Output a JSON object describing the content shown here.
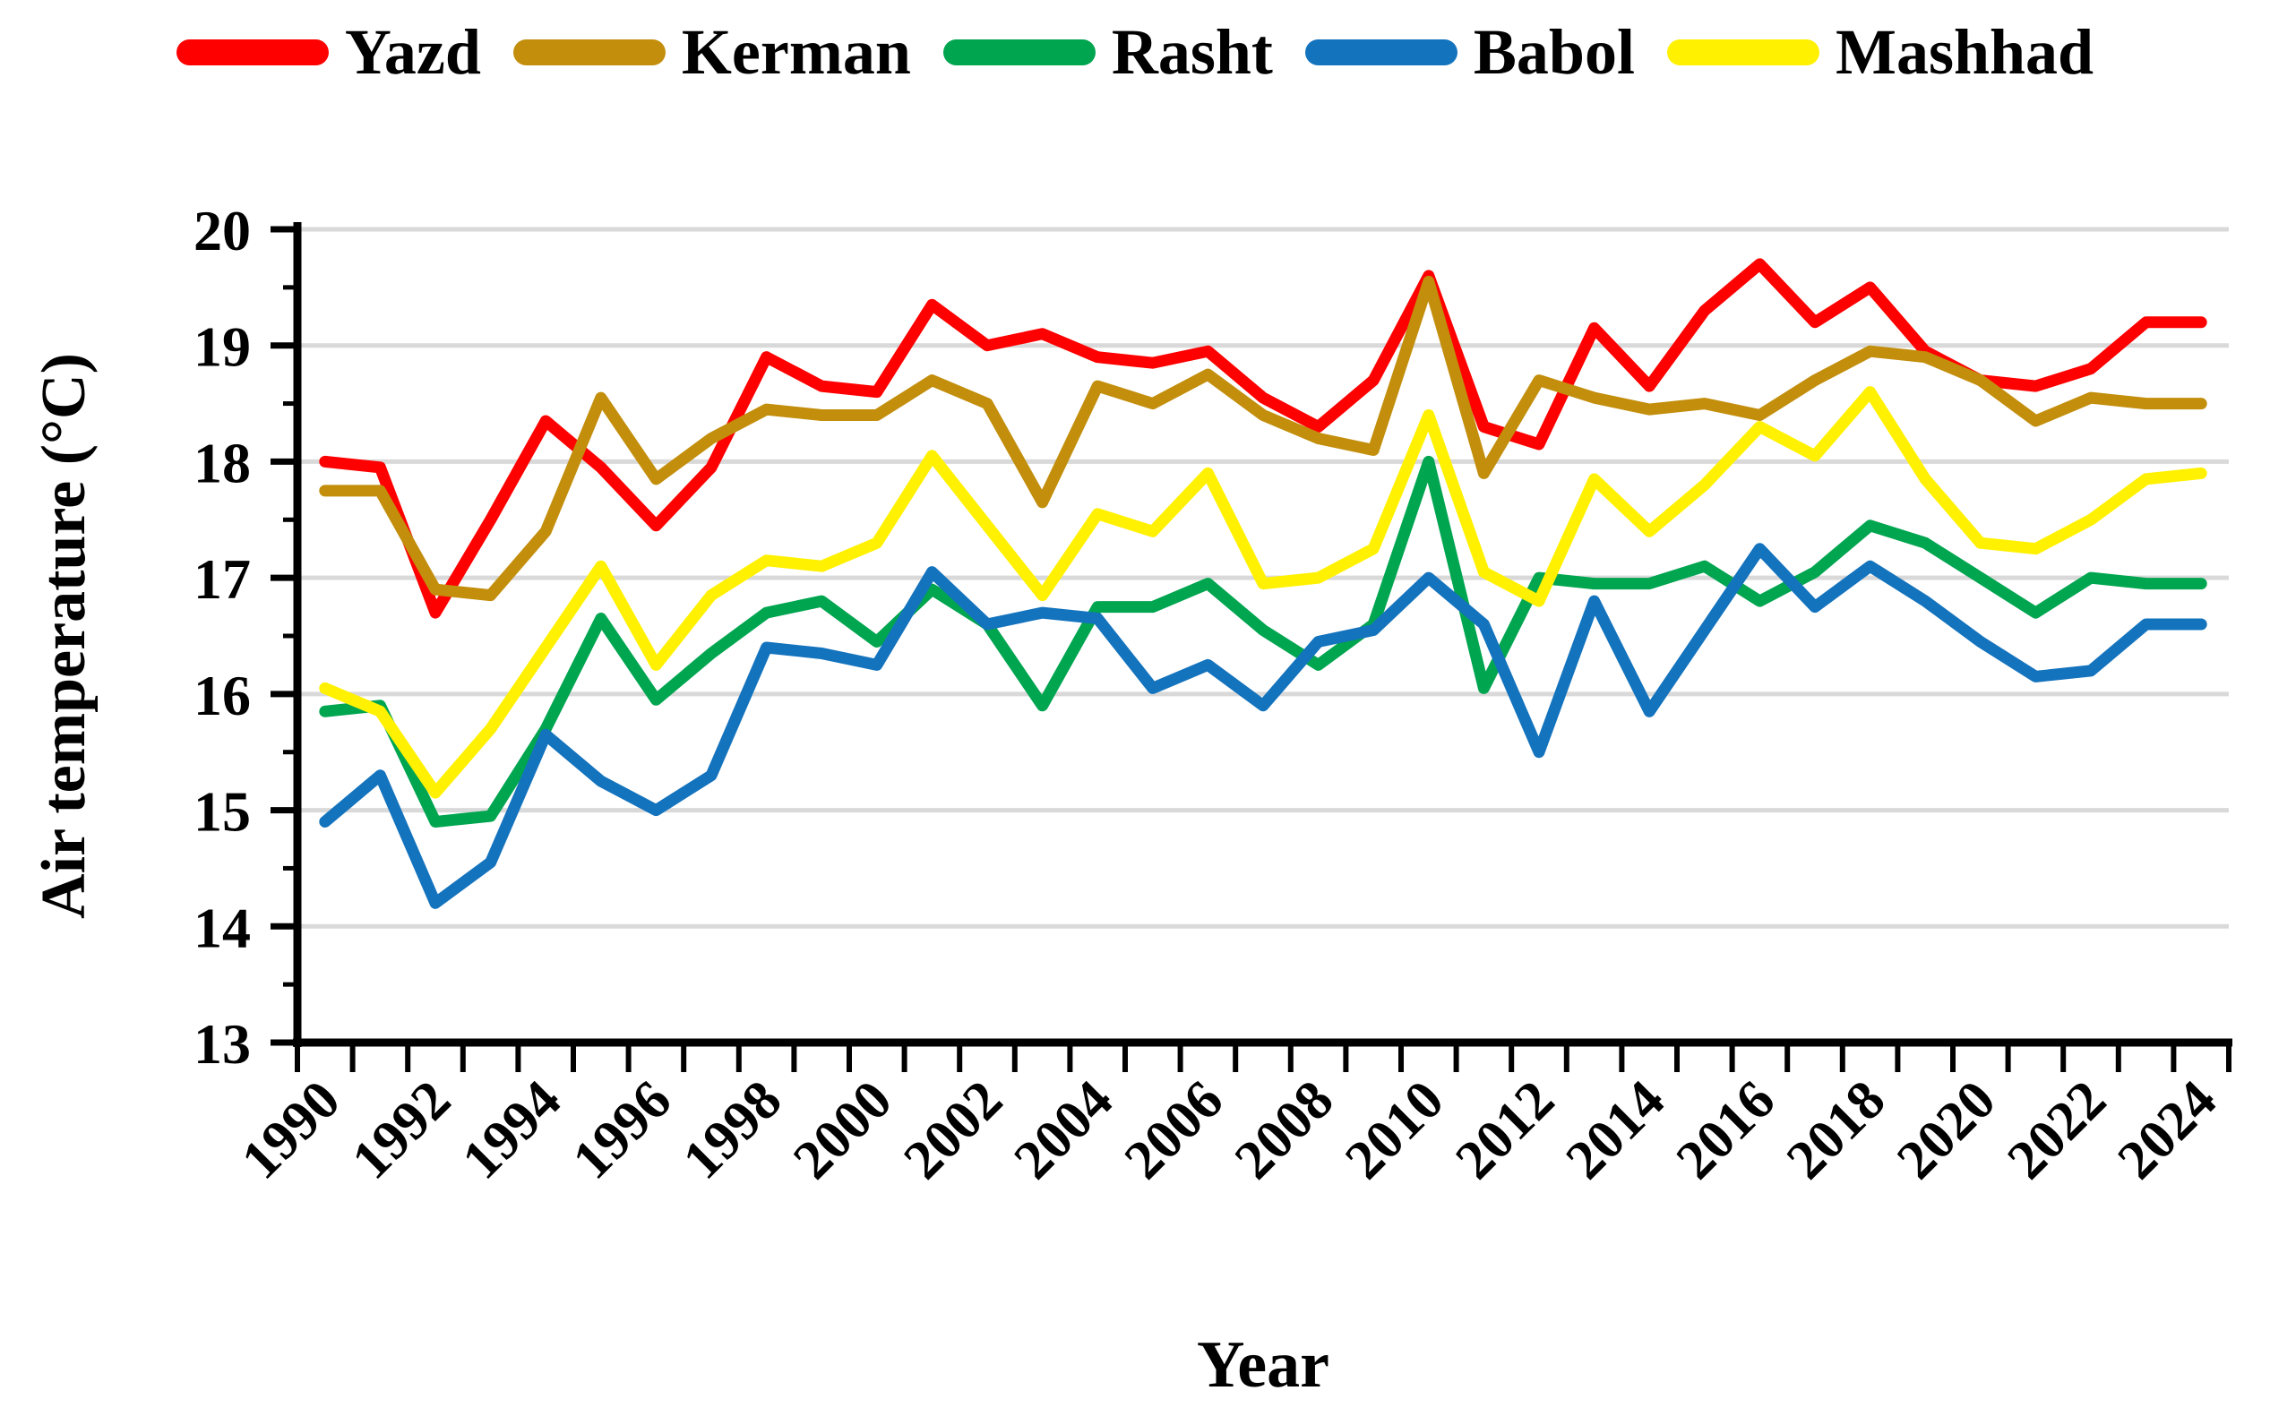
{
  "chart_data": {
    "type": "line",
    "title": "",
    "xlabel": "Year",
    "ylabel": "Air temperature (°C)",
    "ylim": [
      13,
      20
    ],
    "ytick_step": 1,
    "y_tick_labels": [
      "13",
      "14",
      "15",
      "16",
      "17",
      "18",
      "19",
      "20"
    ],
    "x": [
      1990,
      1991,
      1992,
      1993,
      1994,
      1995,
      1996,
      1997,
      1998,
      1999,
      2000,
      2001,
      2002,
      2003,
      2004,
      2005,
      2006,
      2007,
      2008,
      2009,
      2010,
      2011,
      2012,
      2013,
      2014,
      2015,
      2016,
      2017,
      2018,
      2019,
      2020,
      2021,
      2022,
      2023,
      2024
    ],
    "x_tick_labels": [
      "1990",
      "1992",
      "1994",
      "1996",
      "1998",
      "2000",
      "2002",
      "2004",
      "2006",
      "2008",
      "2010",
      "2012",
      "2014",
      "2016",
      "2018",
      "2020",
      "2022",
      "2024"
    ],
    "grid": "horizontal, light gray",
    "legend_position": "top",
    "series": [
      {
        "name": "Yazd",
        "color": "#FE0000",
        "values": [
          18.0,
          17.95,
          16.7,
          17.5,
          18.35,
          17.95,
          17.45,
          17.95,
          18.9,
          18.65,
          18.6,
          19.35,
          19.0,
          19.1,
          18.9,
          18.85,
          18.95,
          18.55,
          18.3,
          18.7,
          19.6,
          18.3,
          18.15,
          19.15,
          18.65,
          19.3,
          19.7,
          19.2,
          19.5,
          18.95,
          18.7,
          18.65,
          18.8,
          19.2,
          19.2
        ]
      },
      {
        "name": "Kerman",
        "color": "#C28E0C",
        "values": [
          17.75,
          17.75,
          16.9,
          16.85,
          17.4,
          18.55,
          17.85,
          18.2,
          18.45,
          18.4,
          18.4,
          18.7,
          18.5,
          17.65,
          18.65,
          18.5,
          18.75,
          18.4,
          18.2,
          18.1,
          19.55,
          17.9,
          18.7,
          18.55,
          18.45,
          18.5,
          18.4,
          18.7,
          18.95,
          18.9,
          18.7,
          18.35,
          18.55,
          18.5,
          18.5
        ]
      },
      {
        "name": "Rasht",
        "color": "#00A550",
        "values": [
          15.85,
          15.9,
          14.9,
          14.95,
          15.7,
          16.65,
          15.95,
          16.35,
          16.7,
          16.8,
          16.45,
          16.9,
          16.6,
          15.9,
          16.75,
          16.75,
          16.95,
          16.55,
          16.25,
          16.6,
          18.0,
          16.05,
          17.0,
          16.95,
          16.95,
          17.1,
          16.8,
          17.05,
          17.45,
          17.3,
          17.0,
          16.7,
          17.0,
          16.95,
          16.95
        ]
      },
      {
        "name": "Babol",
        "color": "#1473BD",
        "values": [
          14.9,
          15.3,
          14.2,
          14.55,
          15.65,
          15.25,
          15.0,
          15.3,
          16.4,
          16.35,
          16.25,
          17.05,
          16.6,
          16.7,
          16.65,
          16.05,
          16.25,
          15.9,
          16.45,
          16.55,
          17.0,
          16.6,
          15.5,
          16.8,
          15.85,
          16.55,
          17.25,
          16.75,
          17.1,
          16.8,
          16.45,
          16.15,
          16.2,
          16.6,
          16.6
        ]
      },
      {
        "name": "Mashhad",
        "color": "#FFF100",
        "values": [
          16.05,
          15.85,
          15.15,
          15.7,
          16.4,
          17.1,
          16.25,
          16.85,
          17.15,
          17.1,
          17.3,
          18.05,
          17.45,
          16.85,
          17.55,
          17.4,
          17.9,
          16.95,
          17.0,
          17.25,
          18.4,
          17.05,
          16.8,
          17.85,
          17.4,
          17.8,
          18.3,
          18.05,
          18.6,
          17.85,
          17.3,
          17.25,
          17.5,
          17.85,
          17.9
        ]
      }
    ]
  },
  "styles": {
    "gridline_color": "#D9D9D9",
    "axis_color": "#000000",
    "line_width": 13,
    "background": "#FFFFFF"
  }
}
